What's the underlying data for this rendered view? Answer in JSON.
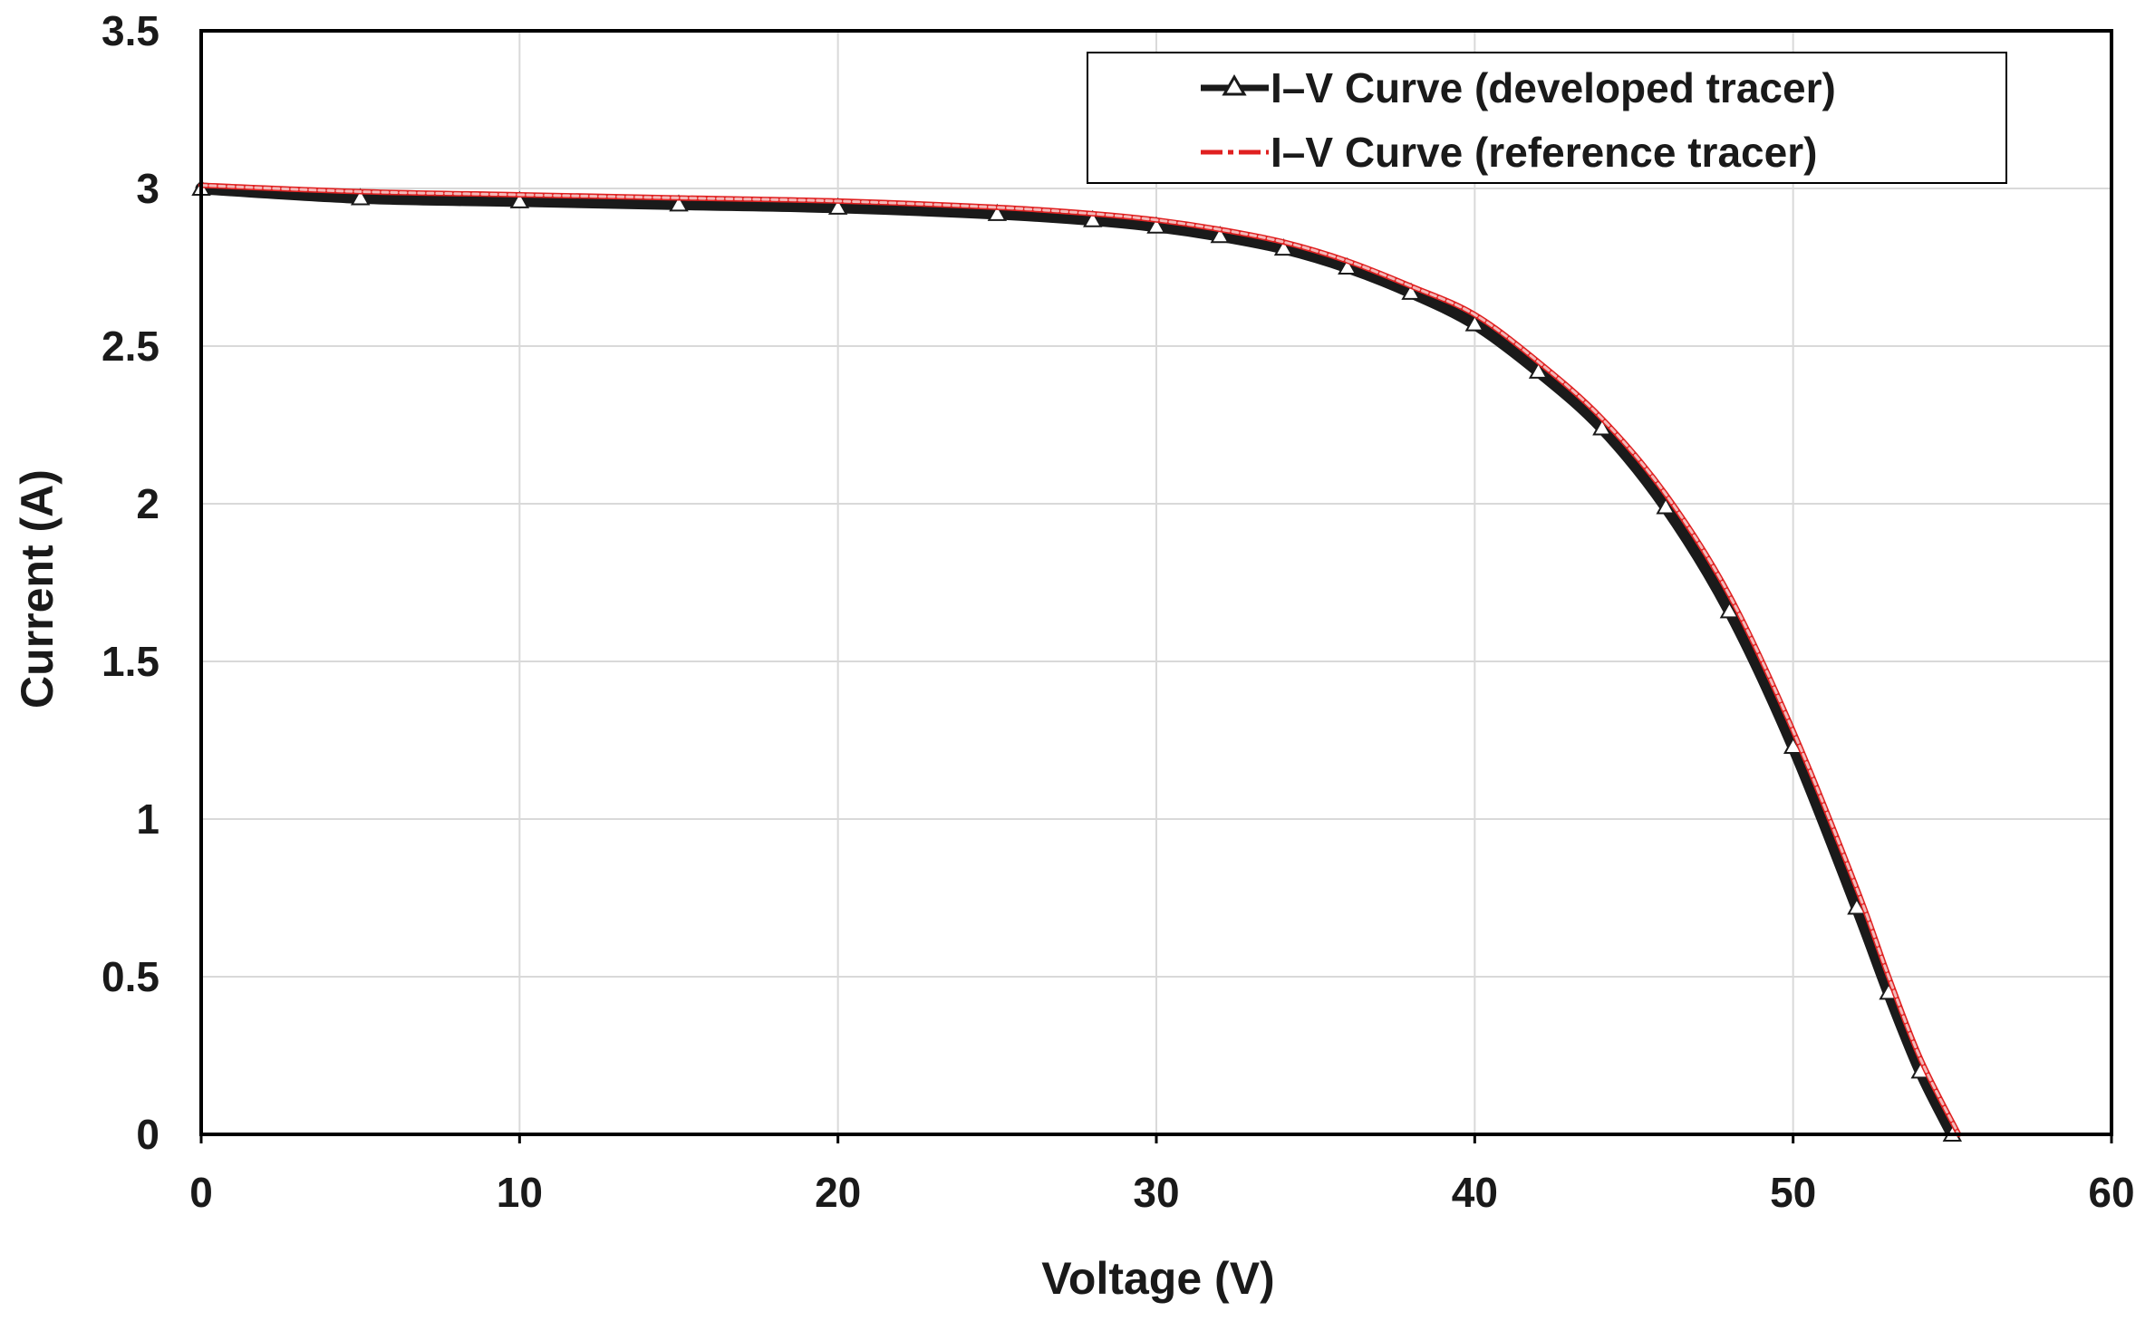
{
  "chart_data": {
    "type": "line",
    "title": "",
    "xlabel": "Voltage (V)",
    "ylabel": "Current (A)",
    "xlim": [
      0,
      60
    ],
    "ylim": [
      0,
      3.5
    ],
    "xticks": [
      0,
      10,
      20,
      30,
      40,
      50,
      60
    ],
    "xtick_labels": [
      "0",
      "10",
      "20",
      "30",
      "40",
      "50",
      "60"
    ],
    "yticks": [
      0,
      0.5,
      1,
      1.5,
      2,
      2.5,
      3,
      3.5
    ],
    "ytick_labels": [
      "0",
      "0.5",
      "1",
      "1.5",
      "2",
      "2.5",
      "3",
      "3.5"
    ],
    "grid": true,
    "legend_position": "top-right",
    "series": [
      {
        "name": "I–V Curve (developed tracer)",
        "color": "#1a1a1a",
        "marker": "open-triangle",
        "x": [
          0,
          5,
          10,
          15,
          20,
          25,
          28,
          30,
          32,
          34,
          36,
          38,
          40,
          42,
          44,
          46,
          48,
          50,
          52,
          53,
          54,
          55
        ],
        "y": [
          3.0,
          2.97,
          2.96,
          2.95,
          2.94,
          2.92,
          2.9,
          2.88,
          2.85,
          2.81,
          2.75,
          2.67,
          2.57,
          2.42,
          2.24,
          1.99,
          1.66,
          1.23,
          0.72,
          0.45,
          0.2,
          0.0
        ]
      },
      {
        "name": "I–V Curve (reference tracer)",
        "color": "#e02020",
        "marker": "none",
        "x": [
          0,
          5,
          10,
          15,
          20,
          25,
          28,
          30,
          32,
          34,
          36,
          38,
          40,
          42,
          44,
          46,
          48,
          50,
          52,
          53,
          54,
          55.2
        ],
        "y": [
          3.01,
          2.99,
          2.98,
          2.97,
          2.96,
          2.94,
          2.92,
          2.9,
          2.87,
          2.83,
          2.77,
          2.69,
          2.6,
          2.45,
          2.27,
          2.03,
          1.71,
          1.28,
          0.78,
          0.5,
          0.24,
          0.0
        ]
      }
    ]
  }
}
